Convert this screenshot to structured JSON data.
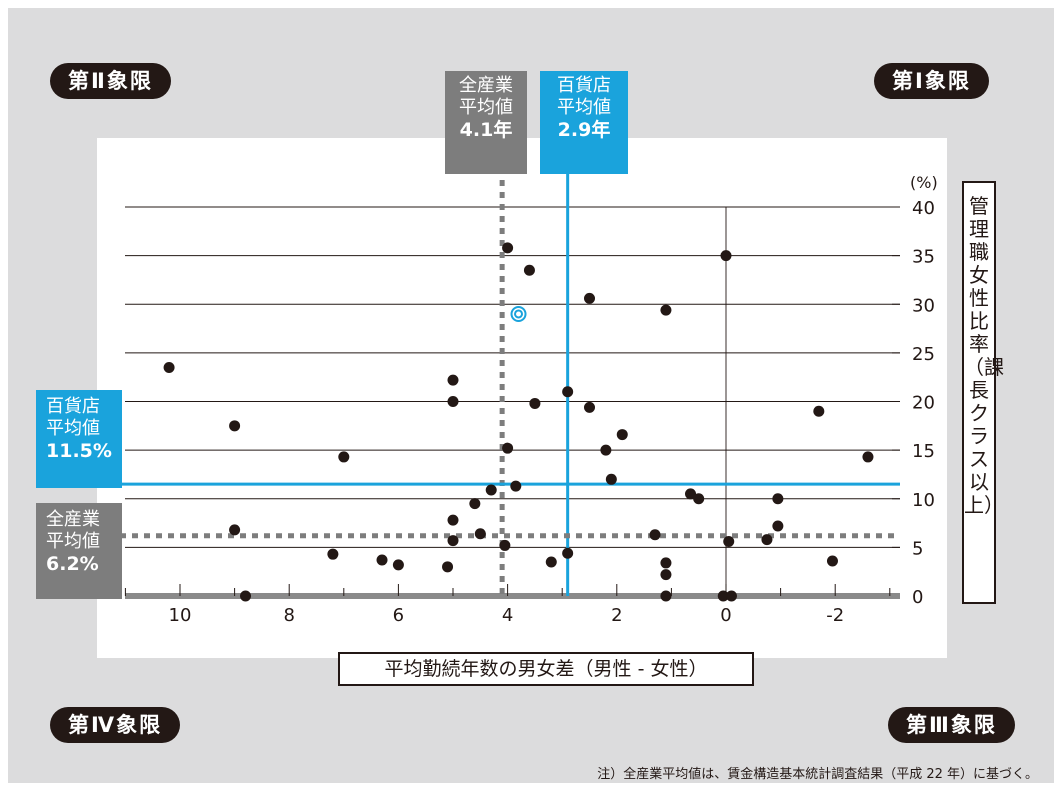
{
  "quadrants": {
    "q2": "第Ⅱ象限",
    "q1": "第Ⅰ象限",
    "q4": "第Ⅳ象限",
    "q3": "第Ⅲ象限"
  },
  "ref_lines": {
    "industry_x": {
      "line1": "全産業",
      "line2": "平均値",
      "value": "4.1年",
      "x": 4.1,
      "color": "#7d7d7d"
    },
    "dept_x": {
      "line1": "百貨店",
      "line2": "平均値",
      "value": "2.9年",
      "x": 2.9,
      "color": "#1aa3dc"
    },
    "dept_y": {
      "line1": "百貨店",
      "line2": "平均値",
      "value": "11.5%",
      "y": 11.5,
      "color": "#1aa3dc"
    },
    "industry_y": {
      "line1": "全産業",
      "line2": "平均値",
      "value": "6.2%",
      "y": 6.2,
      "color": "#7d7d7d"
    }
  },
  "note": "注）全産業平均値は、賃金構造基本統計調査結果（平成 22 年）に基づく。",
  "chart_data": {
    "type": "scatter",
    "xlabel": "平均勤続年数の男女差（男性 - 女性）",
    "ylabel": "管理職女性比率（課長クラス以上）",
    "yunit": "(%)",
    "xlim": [
      11.0,
      -3.2
    ],
    "ylim": [
      0,
      40
    ],
    "x_ticks": [
      10,
      8,
      6,
      4,
      2,
      0,
      -2
    ],
    "x_tick_labels": [
      "10",
      "8",
      "6",
      "4",
      "2",
      "0",
      "-2"
    ],
    "y_ticks": [
      0,
      5,
      10,
      15,
      20,
      25,
      30,
      35,
      40
    ],
    "y_tick_labels": [
      "0",
      "5",
      "10",
      "15",
      "20",
      "25",
      "30",
      "35",
      "40"
    ],
    "grid": true,
    "marker_color": "#231815",
    "points": [
      {
        "x": 10.2,
        "y": 23.5
      },
      {
        "x": 9.0,
        "y": 17.5
      },
      {
        "x": 9.0,
        "y": 6.8
      },
      {
        "x": 8.8,
        "y": 0.0
      },
      {
        "x": 7.0,
        "y": 14.3
      },
      {
        "x": 7.2,
        "y": 4.3
      },
      {
        "x": 6.3,
        "y": 3.7
      },
      {
        "x": 6.0,
        "y": 3.2
      },
      {
        "x": 5.0,
        "y": 22.2
      },
      {
        "x": 5.0,
        "y": 20.0
      },
      {
        "x": 5.0,
        "y": 7.8
      },
      {
        "x": 5.0,
        "y": 5.7
      },
      {
        "x": 5.1,
        "y": 3.0
      },
      {
        "x": 4.6,
        "y": 9.5
      },
      {
        "x": 4.5,
        "y": 6.4
      },
      {
        "x": 4.3,
        "y": 10.9
      },
      {
        "x": 4.0,
        "y": 35.8
      },
      {
        "x": 4.0,
        "y": 15.2
      },
      {
        "x": 4.05,
        "y": 5.2
      },
      {
        "x": 3.85,
        "y": 11.3
      },
      {
        "x": 3.6,
        "y": 33.5
      },
      {
        "x": 3.5,
        "y": 19.8
      },
      {
        "x": 3.2,
        "y": 3.5
      },
      {
        "x": 2.9,
        "y": 21.0
      },
      {
        "x": 2.9,
        "y": 4.4
      },
      {
        "x": 2.5,
        "y": 30.6
      },
      {
        "x": 2.5,
        "y": 19.4
      },
      {
        "x": 2.2,
        "y": 15.0
      },
      {
        "x": 2.1,
        "y": 12.0
      },
      {
        "x": 1.9,
        "y": 16.6
      },
      {
        "x": 1.3,
        "y": 6.3
      },
      {
        "x": 1.1,
        "y": 29.4
      },
      {
        "x": 1.1,
        "y": 3.4
      },
      {
        "x": 1.1,
        "y": 2.2
      },
      {
        "x": 1.1,
        "y": 0.0
      },
      {
        "x": 0.65,
        "y": 10.5
      },
      {
        "x": 0.5,
        "y": 10.0
      },
      {
        "x": 0.0,
        "y": 35.0
      },
      {
        "x": -0.05,
        "y": 5.6
      },
      {
        "x": 0.05,
        "y": 0.0
      },
      {
        "x": -0.1,
        "y": 0.0
      },
      {
        "x": -0.75,
        "y": 5.8
      },
      {
        "x": -0.95,
        "y": 7.2
      },
      {
        "x": -0.95,
        "y": 10.0
      },
      {
        "x": -1.7,
        "y": 19.0
      },
      {
        "x": -1.95,
        "y": 3.6
      },
      {
        "x": -2.6,
        "y": 14.3
      }
    ],
    "highlight_point": {
      "x": 3.8,
      "y": 29.0,
      "color": "#1aa3dc"
    }
  }
}
